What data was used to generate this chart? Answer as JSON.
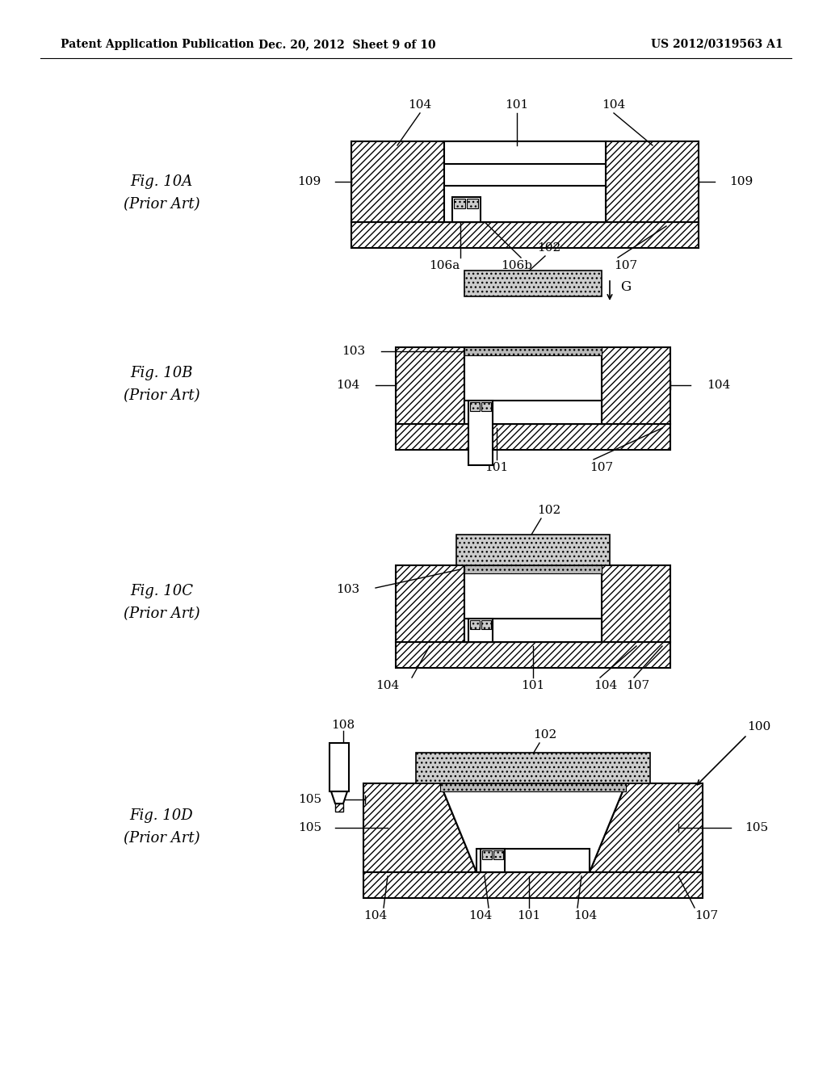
{
  "header_left": "Patent Application Publication",
  "header_center": "Dec. 20, 2012  Sheet 9 of 10",
  "header_right": "US 2012/0319563 A1",
  "background_color": "#ffffff",
  "line_color": "#000000",
  "annotation_fontsize": 11,
  "header_fontsize": 10,
  "fig_label_fontsize": 13
}
